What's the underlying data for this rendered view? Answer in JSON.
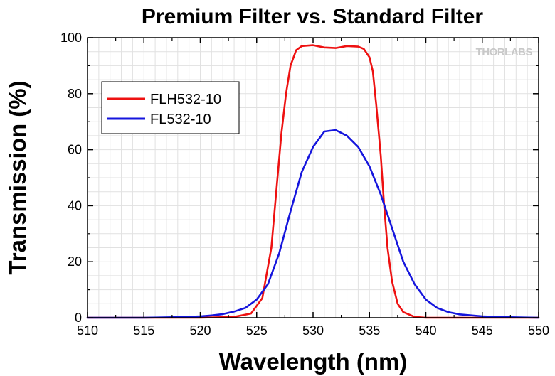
{
  "chart_data": {
    "type": "line",
    "title": "Premium Filter vs. Standard Filter",
    "xlabel": "Wavelength (nm)",
    "ylabel": "Transmission (%)",
    "xlim": [
      510,
      550
    ],
    "ylim": [
      0,
      100
    ],
    "x_ticks": [
      "510",
      "515",
      "520",
      "525",
      "530",
      "535",
      "540",
      "545",
      "550"
    ],
    "y_ticks": [
      "0",
      "20",
      "40",
      "60",
      "80",
      "100"
    ],
    "grid": true,
    "legend_position": "top-left",
    "watermark": "THORLABS",
    "series": [
      {
        "name": "FLH532-10",
        "color": "#ee1111",
        "x": [
          510,
          520,
          523,
          524.5,
          525.5,
          526.3,
          526.8,
          527.2,
          527.6,
          528,
          528.5,
          529,
          530,
          531,
          532,
          533,
          534,
          534.5,
          535,
          535.3,
          535.6,
          536,
          536.3,
          536.6,
          537,
          537.5,
          538,
          539,
          540,
          545,
          550
        ],
        "y": [
          0,
          0,
          0.3,
          1.5,
          7,
          25,
          48,
          66,
          80,
          90,
          95.5,
          97,
          97.3,
          96.5,
          96.3,
          97,
          96.8,
          96,
          93,
          88,
          76,
          58,
          40,
          25,
          13,
          5,
          2,
          0.3,
          0,
          0,
          0
        ]
      },
      {
        "name": "FL532-10",
        "color": "#1515dd",
        "x": [
          510,
          515,
          518,
          520,
          521,
          522,
          523,
          524,
          525,
          526,
          527,
          528,
          529,
          530,
          531,
          532,
          533,
          534,
          535,
          536,
          537,
          538,
          539,
          540,
          541,
          542,
          543,
          545,
          547,
          550
        ],
        "y": [
          0,
          0,
          0.2,
          0.5,
          0.8,
          1.3,
          2.2,
          3.5,
          6.5,
          12,
          23,
          38,
          52,
          61,
          66.5,
          67,
          65,
          61,
          54,
          44,
          32,
          20,
          12,
          6.5,
          3.5,
          2,
          1.2,
          0.5,
          0.2,
          0
        ]
      }
    ]
  }
}
